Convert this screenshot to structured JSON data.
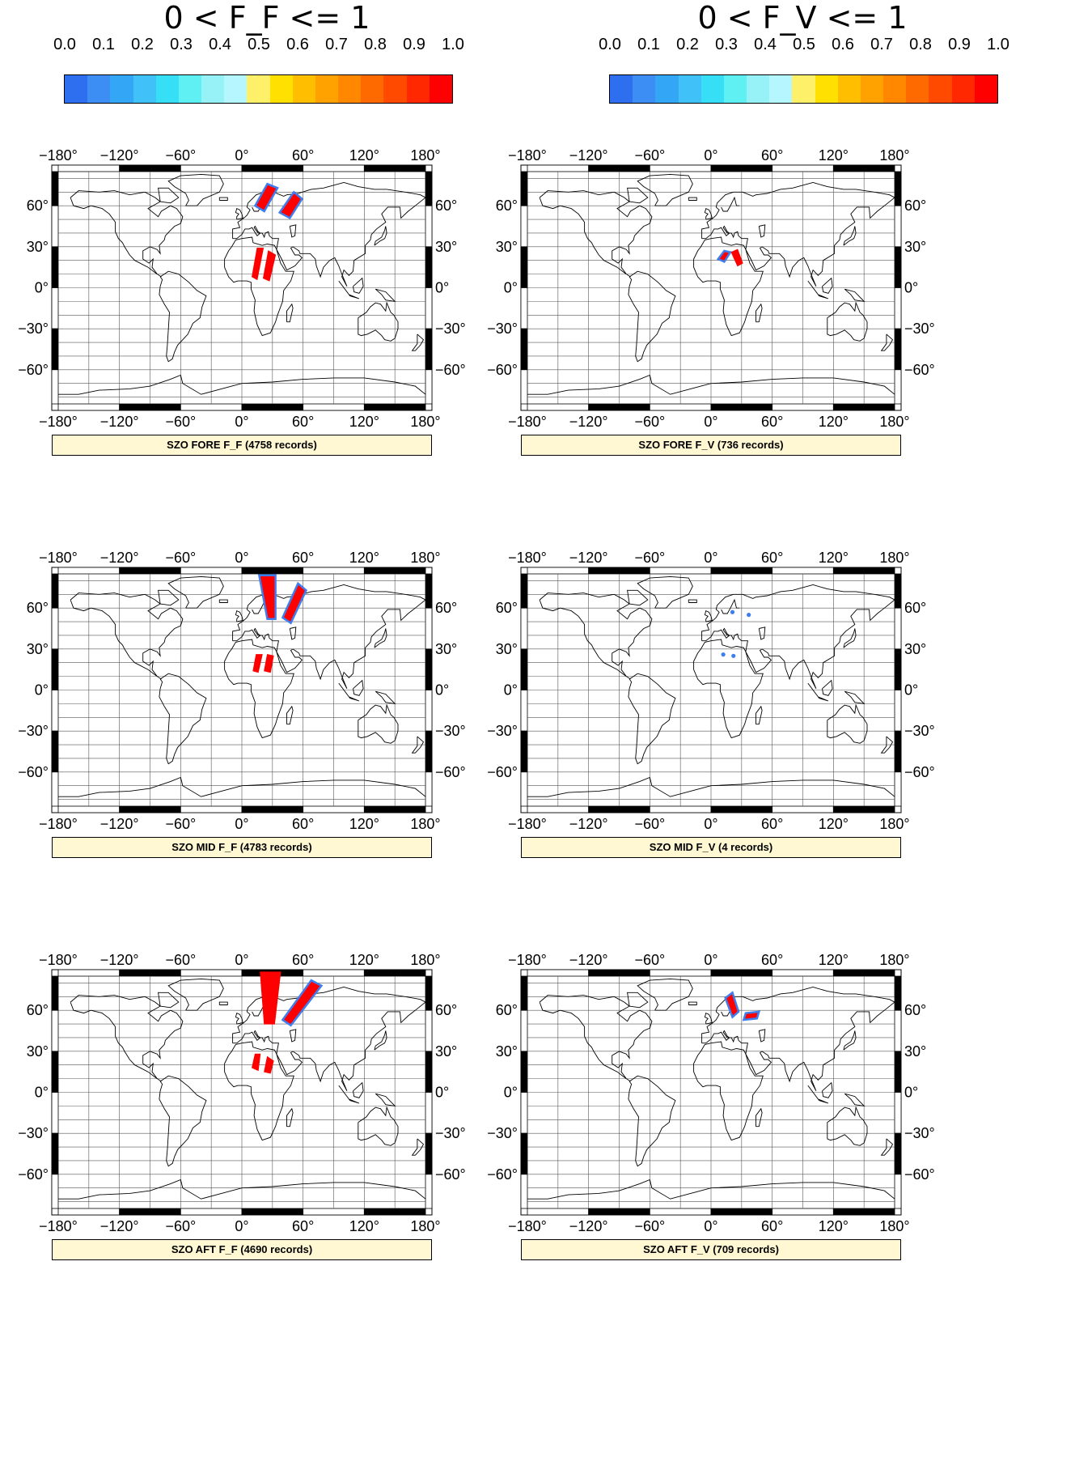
{
  "colorbars": [
    {
      "title": "0 < F_F <= 1",
      "ticks": [
        "0.0",
        "0.1",
        "0.2",
        "0.3",
        "0.4",
        "0.5",
        "0.6",
        "0.7",
        "0.8",
        "0.9",
        "1.0"
      ],
      "colors": [
        "#2e6ff0",
        "#3c8ef4",
        "#34a6f6",
        "#40c1f8",
        "#36dff6",
        "#5ef0f2",
        "#96f2f6",
        "#b6f6ff",
        "#fff06a",
        "#ffe000",
        "#ffbe00",
        "#ffa200",
        "#ff8800",
        "#ff6a00",
        "#ff4a00",
        "#ff2800",
        "#ff0000"
      ]
    },
    {
      "title": "0 < F_V <= 1",
      "ticks": [
        "0.0",
        "0.1",
        "0.2",
        "0.3",
        "0.4",
        "0.5",
        "0.6",
        "0.7",
        "0.8",
        "0.9",
        "1.0"
      ],
      "colors": [
        "#2e6ff0",
        "#3c8ef4",
        "#34a6f6",
        "#40c1f8",
        "#36dff6",
        "#5ef0f2",
        "#96f2f6",
        "#b6f6ff",
        "#fff06a",
        "#ffe000",
        "#ffbe00",
        "#ffa200",
        "#ff8800",
        "#ff6a00",
        "#ff4a00",
        "#ff2800",
        "#ff0000"
      ]
    }
  ],
  "lon_labels": [
    "−180°",
    "−120°",
    "−60°",
    "0°",
    "60°",
    "120°",
    "180°"
  ],
  "lat_labels": [
    "60°",
    "30°",
    "0°",
    "−30°",
    "−60°"
  ],
  "colors": {
    "high": "#ff0000",
    "low": "#3d7ef0",
    "caption_bg": "#fff8d2"
  },
  "panels": [
    {
      "caption": "SZO FORE F_F (4758 records)",
      "records": 4758,
      "swaths": [
        {
          "pts": [
            [
              13,
              60
            ],
            [
              25,
              76
            ],
            [
              35,
              73
            ],
            [
              22,
              56
            ]
          ],
          "edge": true
        },
        {
          "pts": [
            [
              37,
              55
            ],
            [
              51,
              70
            ],
            [
              59,
              65
            ],
            [
              47,
              51
            ]
          ],
          "edge": true
        },
        {
          "pts": [
            [
              10,
              8
            ],
            [
              15,
              29
            ],
            [
              21,
              29
            ],
            [
              15,
              6
            ]
          ]
        },
        {
          "pts": [
            [
              21,
              7
            ],
            [
              26,
              27
            ],
            [
              33,
              24
            ],
            [
              27,
              5
            ]
          ]
        }
      ],
      "dots": []
    },
    {
      "caption": "SZO FORE F_V  (736 records)",
      "records": 736,
      "swaths": [
        {
          "pts": [
            [
              7,
              21
            ],
            [
              13,
              27
            ],
            [
              19,
              26
            ],
            [
              13,
              19
            ]
          ],
          "edge": true
        },
        {
          "pts": [
            [
              20,
              26
            ],
            [
              26,
              28
            ],
            [
              31,
              18
            ],
            [
              26,
              16
            ]
          ]
        }
      ],
      "dots": []
    },
    {
      "caption": "SZO MID F_F (4783 records)",
      "records": 4783,
      "swaths": [
        {
          "pts": [
            [
              17,
              84
            ],
            [
              33,
              84
            ],
            [
              33,
              52
            ],
            [
              25,
              52
            ]
          ],
          "edge": true
        },
        {
          "pts": [
            [
              40,
              53
            ],
            [
              55,
              78
            ],
            [
              63,
              73
            ],
            [
              48,
              49
            ]
          ],
          "edge": true
        },
        {
          "pts": [
            [
              11,
              14
            ],
            [
              14,
              26
            ],
            [
              20,
              26
            ],
            [
              16,
              13
            ]
          ]
        },
        {
          "pts": [
            [
              22,
              14
            ],
            [
              25,
              26
            ],
            [
              31,
              25
            ],
            [
              28,
              13
            ]
          ]
        }
      ],
      "dots": []
    },
    {
      "caption": "SZO MID F_V  (4 records)",
      "records": 4,
      "swaths": [],
      "dots": [
        [
          21,
          57
        ],
        [
          37,
          55
        ],
        [
          12,
          26
        ],
        [
          22,
          25
        ]
      ]
    },
    {
      "caption": "SZO AFT F_F (4690 records)",
      "records": 4690,
      "swaths": [
        {
          "pts": [
            [
              18,
              88
            ],
            [
              38,
              88
            ],
            [
              32,
              50
            ],
            [
              22,
              50
            ]
          ]
        },
        {
          "pts": [
            [
              40,
              53
            ],
            [
              68,
              82
            ],
            [
              78,
              78
            ],
            [
              48,
              49
            ]
          ],
          "edge": true
        },
        {
          "pts": [
            [
              10,
              18
            ],
            [
              13,
              28
            ],
            [
              18,
              28
            ],
            [
              16,
              16
            ]
          ]
        },
        {
          "pts": [
            [
              22,
              15
            ],
            [
              25,
              26
            ],
            [
              31,
              23
            ],
            [
              28,
              14
            ]
          ]
        }
      ],
      "dots": []
    },
    {
      "caption": "SZO AFT F_V  (709 records)",
      "records": 709,
      "swaths": [
        {
          "pts": [
            [
              14,
              69
            ],
            [
              21,
              73
            ],
            [
              27,
              59
            ],
            [
              21,
              55
            ]
          ],
          "edge": true
        },
        {
          "pts": [
            [
              32,
              53
            ],
            [
              34,
              58
            ],
            [
              47,
              59
            ],
            [
              45,
              54
            ]
          ],
          "edge": true
        }
      ],
      "dots": []
    }
  ]
}
